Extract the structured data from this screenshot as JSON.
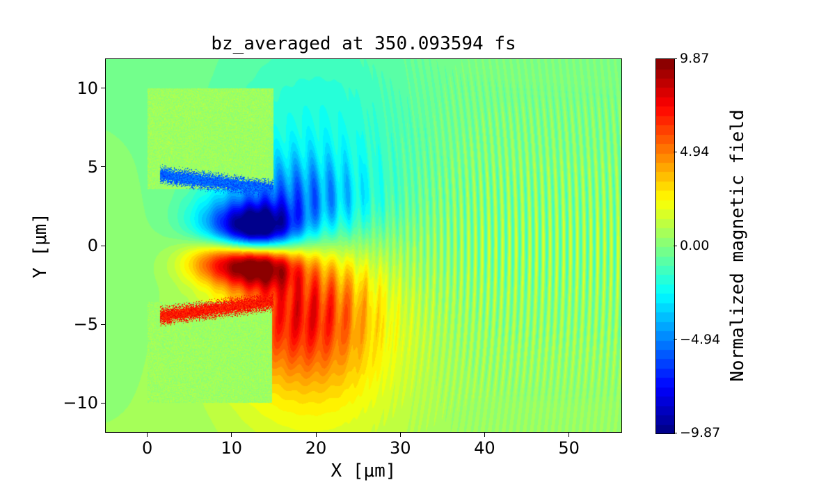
{
  "chart_data": {
    "type": "heatmap",
    "title": "bz_averaged at 350.093594 fs",
    "xlabel": "X [μm]",
    "ylabel": "Y [μm]",
    "xlim": [
      -5,
      56.3
    ],
    "ylim": [
      -11.9,
      11.9
    ],
    "xticks": [
      0,
      10,
      20,
      30,
      40,
      50
    ],
    "xtick_labels": [
      "0",
      "10",
      "20",
      "30",
      "40",
      "50"
    ],
    "yticks": [
      -10,
      -5,
      0,
      5,
      10
    ],
    "ytick_labels": [
      "−10",
      "−5",
      "0",
      "5",
      "10"
    ],
    "colormap": "jet",
    "levels": 40,
    "vmin": -9.87,
    "vmax": 9.87,
    "colorbar": {
      "label": "Normalized magnetic field",
      "ticks": [
        -9.87,
        -4.94,
        0.0,
        4.94,
        9.87
      ],
      "tick_labels": [
        "−9.87",
        "−4.94",
        "0.00",
        "4.94",
        "9.87"
      ]
    },
    "features": [
      {
        "name": "upper target block",
        "x": [
          0,
          15
        ],
        "y": [
          3.5,
          10
        ],
        "value": 0.5
      },
      {
        "name": "lower target block",
        "x": [
          0,
          15
        ],
        "y": [
          -10,
          -3.5
        ],
        "value": 0.5
      },
      {
        "name": "negative lobe",
        "x_center": 13,
        "y_center": 1,
        "peak": -9.5
      },
      {
        "name": "positive lobe",
        "x_center": 13,
        "y_center": -1.2,
        "peak": 8.5
      },
      {
        "name": "radiated wave fronts",
        "x": [
          25,
          56
        ],
        "amplitude": 1.5
      }
    ]
  }
}
